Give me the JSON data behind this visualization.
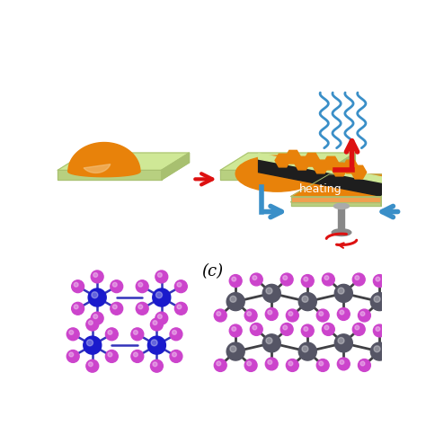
{
  "bg_color": "#ffffff",
  "light_green": "#cfe896",
  "light_green_dark": "#a8c070",
  "light_green_darker": "#b8d080",
  "orange": "#e8820a",
  "orange_light": "#f0a050",
  "dark": "#222222",
  "gray_mid": "#909090",
  "red": "#dd1111",
  "blue": "#3a8fc8",
  "blue_atom": "#1a1acc",
  "purple_atom": "#cc44cc",
  "gray_atom": "#555565",
  "bond_blue": "#3333bb",
  "bond_gray": "#444455",
  "label_c": "(c)",
  "heating_text": "heating"
}
